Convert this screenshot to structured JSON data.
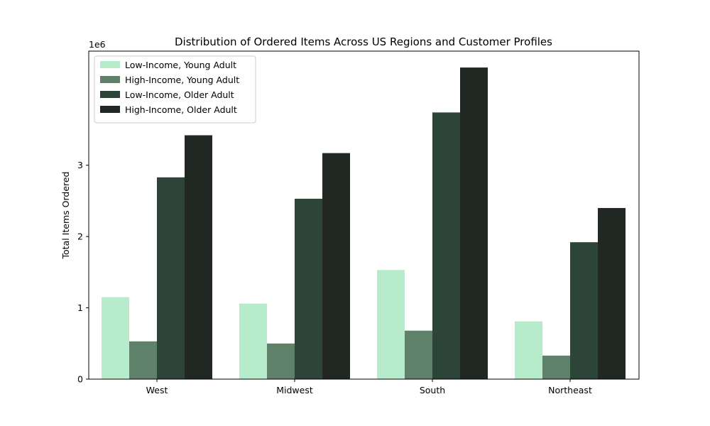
{
  "chart_data": {
    "type": "bar",
    "title": "Distribution of Ordered Items Across US Regions and Customer Profiles",
    "xlabel": "",
    "ylabel": "Total Items Ordered",
    "scale_label": "1e6",
    "categories": [
      "West",
      "Midwest",
      "South",
      "Northeast"
    ],
    "ylim": [
      0,
      4600000
    ],
    "yticks": [
      0,
      1000000,
      2000000,
      3000000
    ],
    "ytick_labels": [
      "0",
      "1",
      "2",
      "3"
    ],
    "grid": false,
    "legend_position": "top-left",
    "series": [
      {
        "name": "Low-Income, Young Adult",
        "color": "#b6ebcb",
        "values": [
          1150000,
          1060000,
          1530000,
          810000
        ]
      },
      {
        "name": "High-Income, Young Adult",
        "color": "#5f8069",
        "values": [
          530000,
          500000,
          680000,
          330000
        ]
      },
      {
        "name": "Low-Income, Older Adult",
        "color": "#2d4538",
        "values": [
          2830000,
          2530000,
          3740000,
          1920000
        ]
      },
      {
        "name": "High-Income, Older Adult",
        "color": "#212824",
        "values": [
          3420000,
          3170000,
          4370000,
          2400000
        ]
      }
    ]
  }
}
